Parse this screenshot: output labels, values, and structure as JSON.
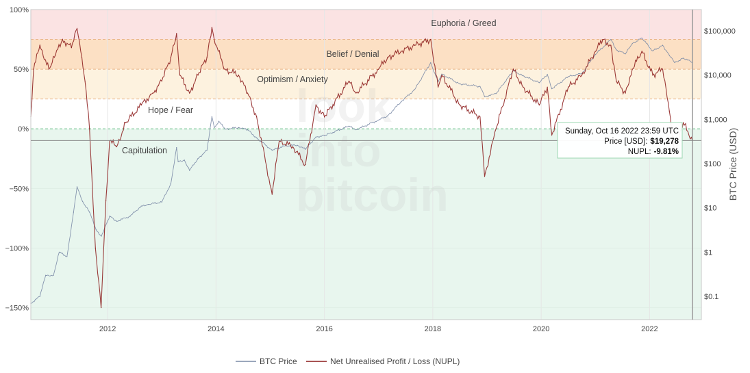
{
  "chart_data": {
    "type": "line",
    "title": "",
    "xlabel": "",
    "ylabel_left": "",
    "ylabel_right": "BTC Price (USD)",
    "x_range": [
      "2010-08-01",
      "2022-12-15"
    ],
    "x_ticks": [
      "2012",
      "2014",
      "2016",
      "2018",
      "2020",
      "2022"
    ],
    "y_left": {
      "range": [
        -160,
        100
      ],
      "ticks": [
        "100%",
        "50%",
        "0%",
        "−50%",
        "−100%",
        "−150%"
      ],
      "tick_values": [
        100,
        50,
        0,
        -50,
        -100,
        -150
      ]
    },
    "y_right": {
      "scale": "log",
      "range": [
        0.03,
        300000
      ],
      "ticks": [
        "$100,000",
        "$10,000",
        "$1,000",
        "$100",
        "$10",
        "$1",
        "$0.1"
      ],
      "tick_values": [
        100000,
        10000,
        1000,
        100,
        10,
        1,
        0.1
      ]
    },
    "zones": [
      {
        "label": "Euphoria / Greed",
        "from": 75,
        "to": 100,
        "color": "#fbe3e3"
      },
      {
        "label": "Belief / Denial",
        "from": 50,
        "to": 75,
        "color": "#fce0c4"
      },
      {
        "label": "Optimism / Anxiety",
        "from": 25,
        "to": 50,
        "color": "#fdf2df"
      },
      {
        "label": "Hope / Fear",
        "from": 0,
        "to": 25,
        "color": "#ffffff"
      },
      {
        "label": "Capitulation",
        "from": -160,
        "to": 0,
        "color": "#e8f6ee"
      }
    ],
    "series": [
      {
        "name": "BTC Price",
        "axis": "right",
        "color": "#7a8aa6",
        "points": [
          [
            "2010-08-01",
            0.07
          ],
          [
            "2010-10-01",
            0.1
          ],
          [
            "2010-11-10",
            0.3
          ],
          [
            "2011-01-01",
            0.3
          ],
          [
            "2011-02-10",
            1.0
          ],
          [
            "2011-04-01",
            0.8
          ],
          [
            "2011-05-15",
            8
          ],
          [
            "2011-06-08",
            30
          ],
          [
            "2011-07-15",
            14
          ],
          [
            "2011-09-01",
            8
          ],
          [
            "2011-10-15",
            3.2
          ],
          [
            "2011-11-20",
            2.3
          ],
          [
            "2012-01-15",
            6.5
          ],
          [
            "2012-03-01",
            5
          ],
          [
            "2012-06-01",
            6.5
          ],
          [
            "2012-08-15",
            11
          ],
          [
            "2012-10-01",
            12
          ],
          [
            "2013-01-01",
            13.5
          ],
          [
            "2013-03-01",
            35
          ],
          [
            "2013-04-09",
            230
          ],
          [
            "2013-04-20",
            110
          ],
          [
            "2013-06-01",
            120
          ],
          [
            "2013-07-05",
            70
          ],
          [
            "2013-09-01",
            130
          ],
          [
            "2013-11-01",
            200
          ],
          [
            "2013-12-04",
            1150
          ],
          [
            "2013-12-20",
            650
          ],
          [
            "2014-01-20",
            900
          ],
          [
            "2014-03-01",
            600
          ],
          [
            "2014-06-01",
            650
          ],
          [
            "2014-08-01",
            580
          ],
          [
            "2014-10-01",
            380
          ],
          [
            "2015-01-14",
            200
          ],
          [
            "2015-04-01",
            250
          ],
          [
            "2015-07-01",
            260
          ],
          [
            "2015-08-25",
            210
          ],
          [
            "2015-11-05",
            400
          ],
          [
            "2016-01-01",
            430
          ],
          [
            "2016-06-15",
            700
          ],
          [
            "2016-08-01",
            580
          ],
          [
            "2016-12-31",
            960
          ],
          [
            "2017-03-01",
            1200
          ],
          [
            "2017-06-01",
            2500
          ],
          [
            "2017-09-01",
            4700
          ],
          [
            "2017-12-17",
            19000
          ],
          [
            "2018-02-06",
            7000
          ],
          [
            "2018-03-01",
            10500
          ],
          [
            "2018-06-30",
            6300
          ],
          [
            "2018-11-15",
            5500
          ],
          [
            "2018-12-15",
            3250
          ],
          [
            "2019-03-01",
            3800
          ],
          [
            "2019-06-26",
            12500
          ],
          [
            "2019-09-01",
            9600
          ],
          [
            "2019-12-18",
            6700
          ],
          [
            "2020-02-12",
            10300
          ],
          [
            "2020-03-12",
            4900
          ],
          [
            "2020-07-01",
            9200
          ],
          [
            "2020-10-01",
            10800
          ],
          [
            "2020-12-31",
            29000
          ],
          [
            "2021-04-14",
            63500
          ],
          [
            "2021-05-20",
            37000
          ],
          [
            "2021-07-20",
            30000
          ],
          [
            "2021-09-06",
            51000
          ],
          [
            "2021-11-10",
            68000
          ],
          [
            "2022-01-22",
            35000
          ],
          [
            "2022-03-28",
            47000
          ],
          [
            "2022-05-12",
            28000
          ],
          [
            "2022-06-18",
            19000
          ],
          [
            "2022-08-15",
            24000
          ],
          [
            "2022-10-16",
            19278
          ]
        ]
      },
      {
        "name": "Net Unrealised Profit / Loss (NUPL)",
        "axis": "left",
        "color": "#8b1a1a",
        "points": [
          [
            "2010-08-01",
            10
          ],
          [
            "2010-08-20",
            50
          ],
          [
            "2010-10-01",
            70
          ],
          [
            "2010-12-01",
            50
          ],
          [
            "2011-01-15",
            62
          ],
          [
            "2011-03-01",
            75
          ],
          [
            "2011-05-01",
            68
          ],
          [
            "2011-06-08",
            84
          ],
          [
            "2011-07-10",
            60
          ],
          [
            "2011-08-01",
            40
          ],
          [
            "2011-09-01",
            0
          ],
          [
            "2011-10-10",
            -100
          ],
          [
            "2011-11-18",
            -150
          ],
          [
            "2011-12-20",
            -60
          ],
          [
            "2012-01-15",
            -10
          ],
          [
            "2012-03-01",
            -15
          ],
          [
            "2012-05-01",
            5
          ],
          [
            "2012-08-15",
            20
          ],
          [
            "2012-11-01",
            30
          ],
          [
            "2013-01-01",
            40
          ],
          [
            "2013-03-01",
            60
          ],
          [
            "2013-04-09",
            80
          ],
          [
            "2013-05-01",
            45
          ],
          [
            "2013-07-05",
            30
          ],
          [
            "2013-09-01",
            45
          ],
          [
            "2013-11-01",
            60
          ],
          [
            "2013-12-04",
            85
          ],
          [
            "2014-01-01",
            70
          ],
          [
            "2014-03-01",
            50
          ],
          [
            "2014-06-01",
            45
          ],
          [
            "2014-08-01",
            30
          ],
          [
            "2014-10-01",
            10
          ],
          [
            "2015-01-14",
            -55
          ],
          [
            "2015-03-01",
            -10
          ],
          [
            "2015-06-01",
            -15
          ],
          [
            "2015-08-25",
            -30
          ],
          [
            "2015-11-05",
            20
          ],
          [
            "2016-01-01",
            10
          ],
          [
            "2016-06-15",
            40
          ],
          [
            "2016-08-01",
            30
          ],
          [
            "2016-12-31",
            50
          ],
          [
            "2017-03-01",
            60
          ],
          [
            "2017-06-01",
            65
          ],
          [
            "2017-09-01",
            70
          ],
          [
            "2017-12-17",
            75
          ],
          [
            "2018-02-06",
            35
          ],
          [
            "2018-03-01",
            45
          ],
          [
            "2018-06-30",
            20
          ],
          [
            "2018-11-15",
            10
          ],
          [
            "2018-12-15",
            -40
          ],
          [
            "2019-03-01",
            0
          ],
          [
            "2019-06-26",
            50
          ],
          [
            "2019-09-01",
            35
          ],
          [
            "2019-12-18",
            20
          ],
          [
            "2020-02-12",
            35
          ],
          [
            "2020-03-12",
            -5
          ],
          [
            "2020-07-01",
            35
          ],
          [
            "2020-10-01",
            45
          ],
          [
            "2020-12-31",
            65
          ],
          [
            "2021-02-20",
            75
          ],
          [
            "2021-04-14",
            70
          ],
          [
            "2021-05-20",
            40
          ],
          [
            "2021-07-20",
            30
          ],
          [
            "2021-09-06",
            50
          ],
          [
            "2021-11-10",
            65
          ],
          [
            "2022-01-22",
            45
          ],
          [
            "2022-03-28",
            50
          ],
          [
            "2022-05-12",
            15
          ],
          [
            "2022-06-18",
            -20
          ],
          [
            "2022-08-15",
            5
          ],
          [
            "2022-10-16",
            -9.81
          ]
        ]
      }
    ],
    "crosshair": {
      "date": "2022-10-16",
      "nupl": -9.81
    },
    "tooltip": {
      "date_text": "Sunday, Oct 16 2022 23:59 UTC",
      "price_label": "Price [USD]:",
      "price_value": "$19,278",
      "nupl_label": "NUPL:",
      "nupl_value": "-9.81%"
    },
    "legend": {
      "placement": "bottom-center",
      "items": [
        {
          "label": "BTC Price",
          "color": "#7a8aa6"
        },
        {
          "label": "Net Unrealised Profit / Loss (NUPL)",
          "color": "#8b1a1a"
        }
      ]
    },
    "watermark": [
      "look",
      "into",
      "bitcoin"
    ]
  }
}
